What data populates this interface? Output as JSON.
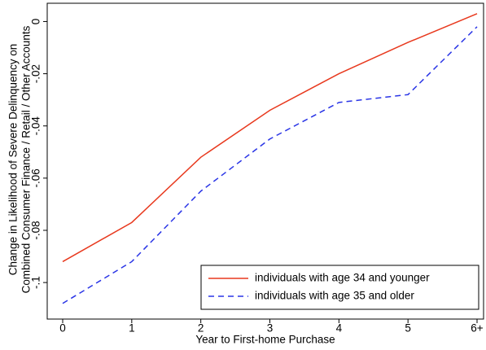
{
  "chart_data": {
    "type": "line",
    "y_label": [
      "Change in Likelihood of Severe Delinquency on",
      "Combined Consumer Finance / Retail / Other Accounts"
    ],
    "x_label": "Year to First-home Purchase",
    "categories": [
      "0",
      "1",
      "2",
      "3",
      "4",
      "5",
      "6+"
    ],
    "series": [
      {
        "name": "individuals with age 34 and younger",
        "color": "#e8391e",
        "dash": false,
        "values": [
          -0.092,
          -0.077,
          -0.052,
          -0.034,
          -0.02,
          -0.008,
          0.003
        ]
      },
      {
        "name": "individuals with age 35 and older",
        "color": "#2a35e6",
        "dash": true,
        "values": [
          -0.108,
          -0.092,
          -0.065,
          -0.045,
          -0.031,
          -0.028,
          -0.002
        ]
      }
    ],
    "ylim": [
      -0.114,
      0.007
    ],
    "yticks": [
      0,
      {
        "value": -0.02,
        "label": "-.02"
      },
      {
        "value": -0.04,
        "label": "-.04"
      },
      {
        "value": -0.06,
        "label": "-.06"
      },
      {
        "value": -0.08,
        "label": "-.08"
      },
      {
        "value": -0.1,
        "label": "-.1"
      }
    ],
    "grid": false,
    "legend": "bottom-right"
  }
}
